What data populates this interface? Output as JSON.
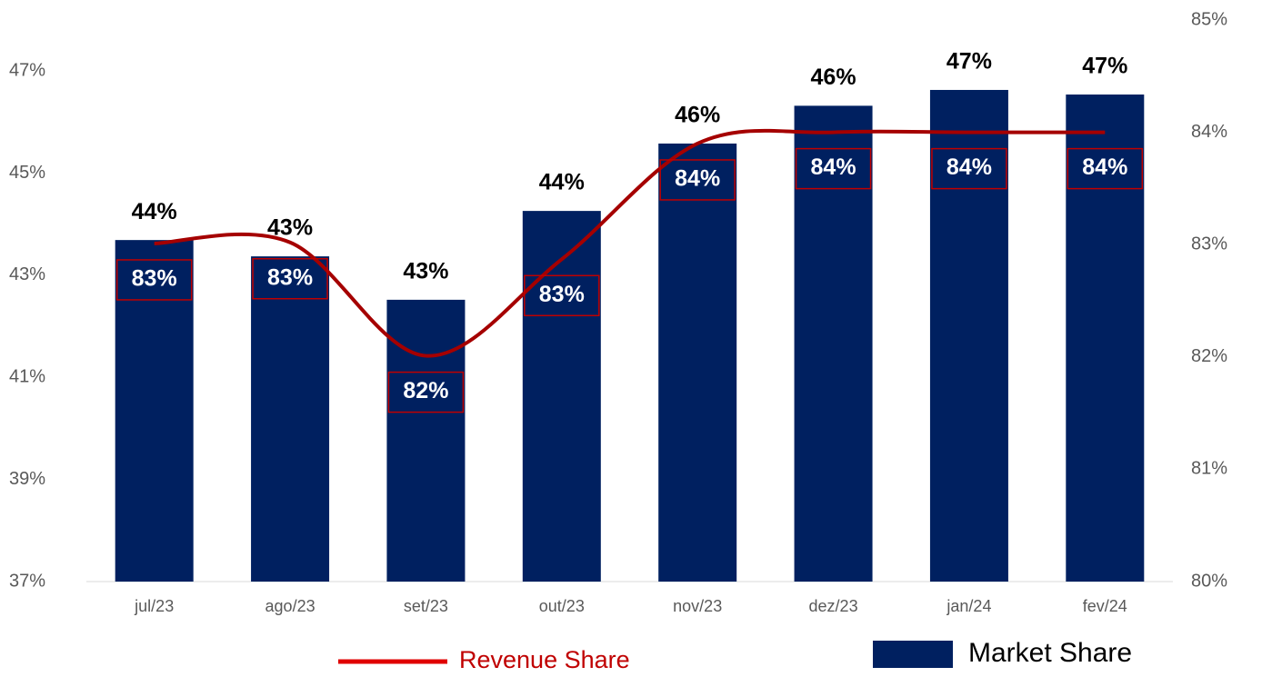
{
  "chart_data": {
    "type": "combo",
    "categories": [
      "jul/23",
      "ago/23",
      "set/23",
      "out/23",
      "nov/23",
      "dez/23",
      "jan/24",
      "fev/24"
    ],
    "series": [
      {
        "name": "Market Share",
        "type": "bar",
        "color": "#002060",
        "values": [
          43.69,
          43.37,
          42.52,
          44.26,
          45.58,
          46.32,
          46.63,
          46.54
        ],
        "value_labels": [
          "44%",
          "43%",
          "43%",
          "44%",
          "46%",
          "46%",
          "47%",
          "47%"
        ]
      },
      {
        "name": "Revenue Share",
        "type": "line",
        "axis": "y2",
        "color": "#a50000",
        "values": [
          83.01,
          83.02,
          82.01,
          82.87,
          83.9,
          84.0,
          84.0,
          84.0
        ],
        "value_labels": [
          "83%",
          "83%",
          "82%",
          "83%",
          "84%",
          "84%",
          "84%",
          "84%"
        ]
      }
    ],
    "ylim": [
      37,
      48
    ],
    "yticks": [
      {
        "value": 37,
        "label": "37%"
      },
      {
        "value": 39,
        "label": "39%"
      },
      {
        "value": 41,
        "label": "41%"
      },
      {
        "value": 43,
        "label": "43%"
      },
      {
        "value": 45,
        "label": "45%"
      },
      {
        "value": 47,
        "label": "47%"
      }
    ],
    "y2lim": [
      80,
      85
    ],
    "y2ticks": [
      {
        "value": 80,
        "label": "80%"
      },
      {
        "value": 81,
        "label": "81%"
      },
      {
        "value": 82,
        "label": "82%"
      },
      {
        "value": 83,
        "label": "83%"
      },
      {
        "value": 84,
        "label": "84%"
      },
      {
        "value": 85,
        "label": "85%"
      }
    ],
    "legend": "bottom"
  }
}
